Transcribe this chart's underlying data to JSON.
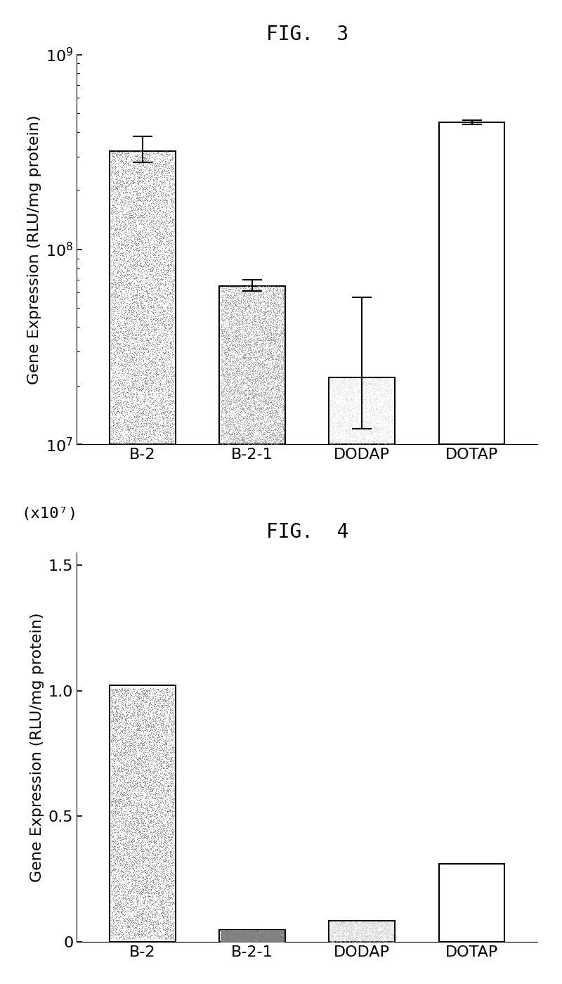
{
  "fig3": {
    "title": "FIG.  3",
    "categories": [
      "B-2",
      "B-2-1",
      "DODAP",
      "DOTAP"
    ],
    "values": [
      320000000.0,
      65000000.0,
      22000000.0,
      450000000.0
    ],
    "errors_upper": [
      60000000.0,
      5000000.0,
      35000000.0,
      12000000.0
    ],
    "errors_lower": [
      40000000.0,
      4000000.0,
      10000000.0,
      12000000.0
    ],
    "bar_grays": [
      0.45,
      0.55,
      0.78,
      1.0
    ],
    "bar_fill": [
      "gray_dark",
      "gray_mid",
      "gray_light",
      "white"
    ],
    "ylabel": "Gene Expression (RLU/mg protein)",
    "ylim_log": [
      10000000.0,
      1000000000.0
    ],
    "yticks": [
      10000000.0,
      100000000.0,
      1000000000.0
    ],
    "yticklabels": [
      "10⁷",
      "10⁸",
      "10⁹"
    ]
  },
  "fig4": {
    "title": "FIG.  4",
    "categories": [
      "B-2",
      "B-2-1",
      "DODAP",
      "DOTAP"
    ],
    "values": [
      10200000.0,
      500000.0,
      850000.0,
      3100000.0
    ],
    "bar_fill": [
      "gray_dark",
      "gray_dark2",
      "gray_light",
      "white"
    ],
    "bar_grays": [
      0.45,
      0.5,
      0.78,
      1.0
    ],
    "ylabel": "Gene Expression (RLU/mg protein)",
    "scale_label": "(x10⁷)",
    "ylim": [
      0,
      15500000.0
    ],
    "yticks": [
      0.0,
      5000000.0,
      10000000.0,
      15000000.0
    ],
    "yticklabels": [
      "0",
      "0.5",
      "1.0",
      "1.5"
    ]
  },
  "background_color": "#ffffff",
  "title_fontsize": 20,
  "label_fontsize": 16,
  "tick_fontsize": 16,
  "bar_width": 0.6,
  "noise_density_dark": 0.55,
  "noise_density_light": 0.25
}
